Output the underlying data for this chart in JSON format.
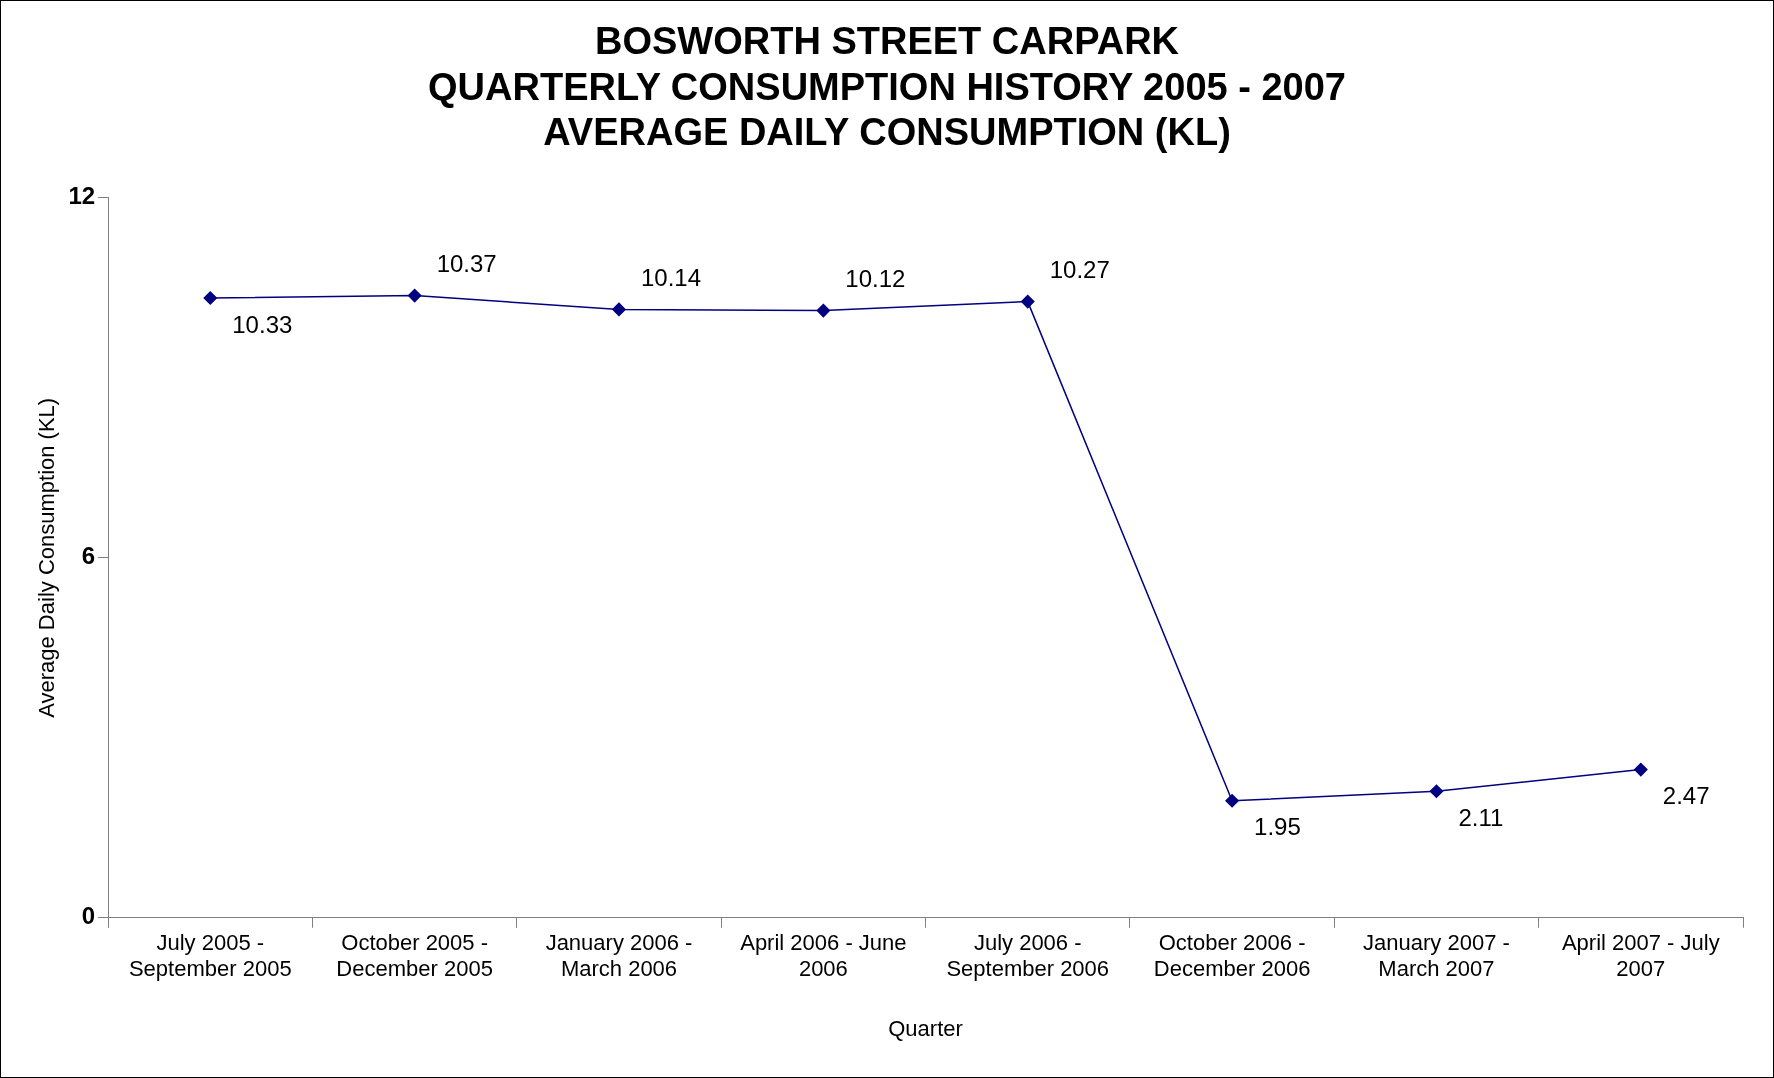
{
  "chart_data": {
    "type": "line",
    "title": [
      "BOSWORTH STREET CARPARK",
      "QUARTERLY CONSUMPTION HISTORY 2005 - 2007",
      "AVERAGE DAILY CONSUMPTION (KL)"
    ],
    "xlabel": "Quarter",
    "ylabel": "Average Daily Consumption (KL)",
    "categories": [
      "July 2005 - September 2005",
      "October 2005 - December 2005",
      "January 2006 - March 2006",
      "April 2006 - June 2006",
      "July 2006 - September 2006",
      "October 2006 - December 2006",
      "January 2007 - March 2007",
      "April 2007 - July 2007"
    ],
    "series": [
      {
        "color": "#000080",
        "values": [
          10.33,
          10.37,
          10.14,
          10.12,
          10.27,
          1.95,
          2.11,
          2.47
        ]
      }
    ],
    "ylim": [
      0,
      12
    ],
    "yticks": [
      0,
      6,
      12
    ],
    "grid": false,
    "legend": false,
    "marker": "diamond",
    "line_style": "solid",
    "data_labels": true
  }
}
